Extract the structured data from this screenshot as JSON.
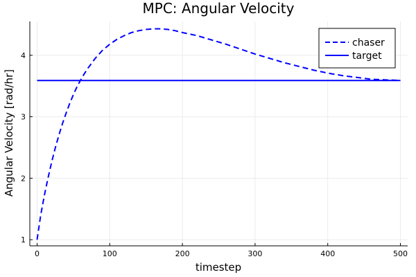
{
  "chart_data": {
    "type": "line",
    "title": "MPC: Angular Velocity",
    "xlabel": "timestep",
    "ylabel": "Angular Velocity [rad/hr]",
    "xlim": [
      -10,
      510
    ],
    "ylim": [
      0.9,
      4.55
    ],
    "xticks": [
      0,
      100,
      200,
      300,
      400,
      500
    ],
    "yticks": [
      1,
      2,
      3,
      4
    ],
    "grid": true,
    "legend_position": "top-right",
    "colors": {
      "series": "#0000ff",
      "grid": "#ebebeb",
      "axis": "#000000"
    },
    "series": [
      {
        "name": "chaser",
        "style": "dashed",
        "x": [
          0,
          5,
          10,
          15,
          20,
          25,
          30,
          35,
          40,
          45,
          50,
          55,
          60,
          65,
          70,
          80,
          90,
          100,
          110,
          120,
          130,
          140,
          150,
          160,
          170,
          180,
          190,
          200,
          220,
          240,
          260,
          280,
          300,
          320,
          340,
          360,
          380,
          400,
          420,
          440,
          460,
          480,
          500
        ],
        "y": [
          1.0,
          1.4,
          1.72,
          2.0,
          2.26,
          2.49,
          2.7,
          2.89,
          3.06,
          3.22,
          3.36,
          3.49,
          3.6,
          3.7,
          3.79,
          3.95,
          4.08,
          4.18,
          4.26,
          4.32,
          4.37,
          4.4,
          4.42,
          4.43,
          4.43,
          4.42,
          4.4,
          4.37,
          4.32,
          4.25,
          4.18,
          4.1,
          4.02,
          3.95,
          3.88,
          3.82,
          3.76,
          3.71,
          3.67,
          3.64,
          3.61,
          3.6,
          3.59
        ]
      },
      {
        "name": "target",
        "style": "solid",
        "x": [
          0,
          500
        ],
        "y": [
          3.59,
          3.59
        ]
      }
    ]
  }
}
